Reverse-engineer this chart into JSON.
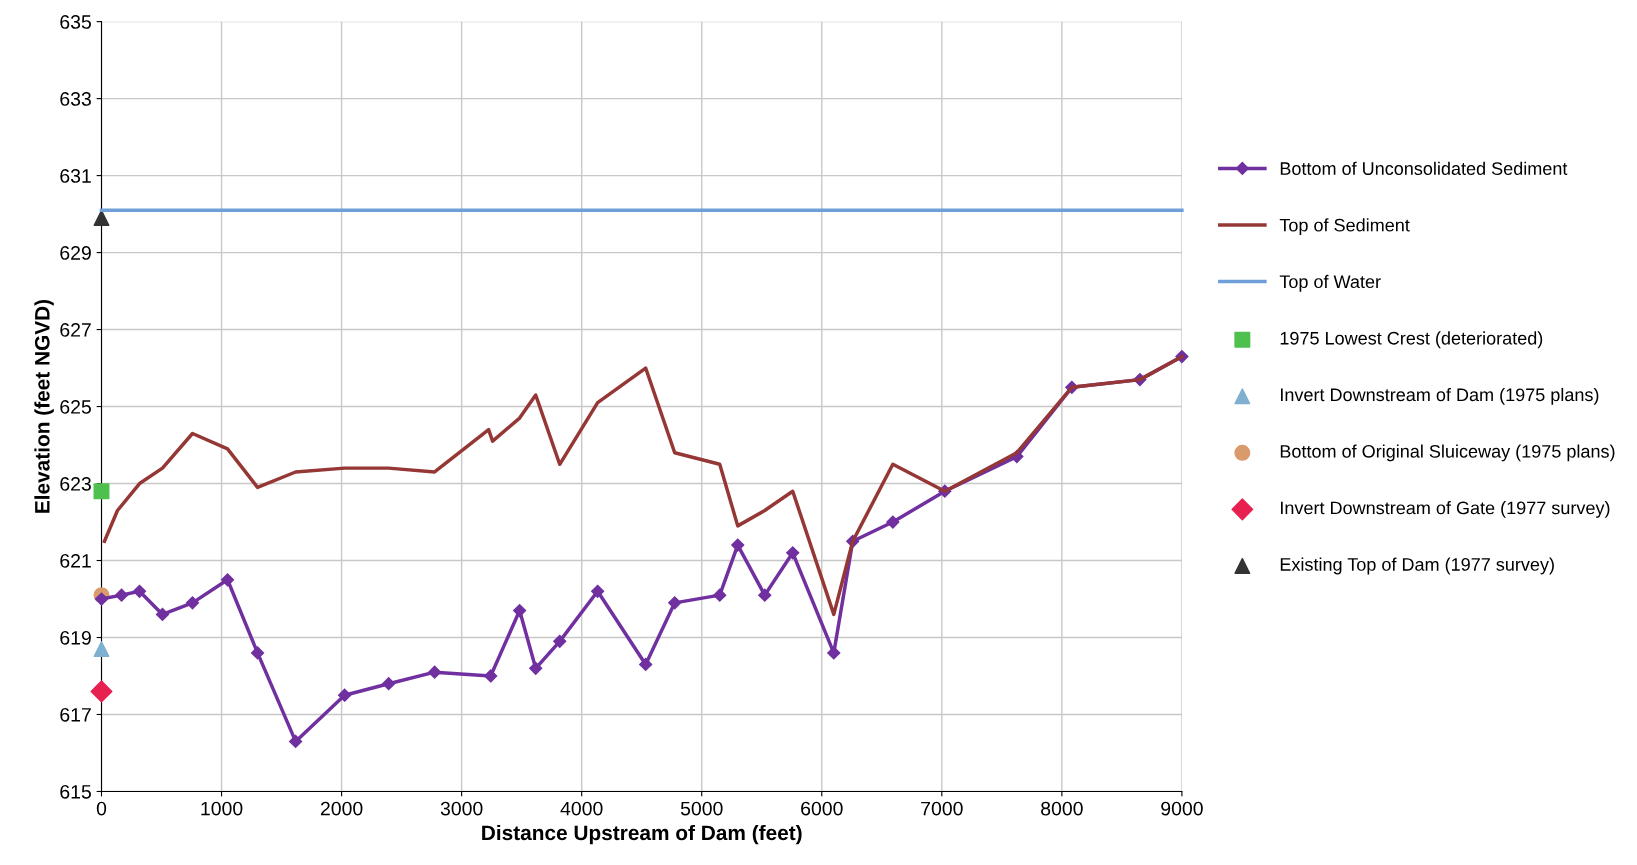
{
  "chart_data": {
    "type": "line",
    "xlabel": "Distance Upstream of Dam (feet)",
    "ylabel": "Elevation (feet NGVD)",
    "xlim": [
      0,
      9000
    ],
    "xticks": [
      0,
      1000,
      2000,
      3000,
      4000,
      5000,
      6000,
      7000,
      8000,
      9000
    ],
    "ylim": [
      615,
      635
    ],
    "yticks": [
      615,
      617,
      619,
      621,
      623,
      625,
      627,
      629,
      631,
      633,
      635
    ],
    "grid": true,
    "legend": "right",
    "series": [
      {
        "name": "Bottom of Unconsolidated Sediment",
        "color": "#7030a0",
        "marker": "diamond",
        "x": [
          0,
          167,
          317,
          508,
          758,
          1050,
          1300,
          1617,
          2025,
          2392,
          2775,
          3242,
          3483,
          3617,
          3817,
          4133,
          4533,
          4775,
          5150,
          5300,
          5525,
          5758,
          6100,
          6258,
          6592,
          7025,
          7625,
          8083,
          8650,
          9000
        ],
        "values": [
          620.0,
          620.1,
          620.2,
          619.6,
          619.9,
          620.5,
          618.6,
          616.3,
          617.5,
          617.8,
          618.1,
          618.0,
          619.7,
          618.2,
          618.9,
          620.2,
          618.3,
          619.9,
          620.1,
          621.4,
          620.1,
          621.2,
          618.6,
          621.5,
          622.0,
          622.8,
          623.7,
          625.5,
          625.7,
          626.3
        ]
      },
      {
        "name": "Top of Sediment",
        "color": "#953735",
        "marker": "none",
        "x": [
          25,
          133,
          317,
          508,
          758,
          1050,
          1300,
          1617,
          2025,
          2392,
          2775,
          3225,
          3258,
          3483,
          3617,
          3817,
          4133,
          4533,
          4775,
          5150,
          5300,
          5525,
          5758,
          6100,
          6258,
          6592,
          7025,
          7625,
          8083,
          8650,
          9000
        ],
        "values": [
          621.5,
          622.3,
          623.0,
          623.4,
          624.3,
          623.9,
          622.9,
          623.3,
          623.4,
          623.4,
          623.3,
          624.4,
          624.1,
          624.7,
          625.3,
          623.5,
          625.1,
          626.0,
          623.8,
          623.5,
          621.9,
          622.3,
          622.8,
          619.6,
          621.5,
          623.5,
          622.8,
          623.8,
          625.5,
          625.7,
          626.3
        ]
      },
      {
        "name": "Top of Water",
        "color": "#6f9fd8",
        "marker": "none",
        "x": [
          0,
          9000
        ],
        "values": [
          630.1,
          630.1
        ]
      },
      {
        "name": "1975 Lowest Crest (deteriorated)",
        "type": "scatter",
        "color": "#4ec04e",
        "marker": "square",
        "x": [
          0
        ],
        "values": [
          622.8
        ]
      },
      {
        "name": "Invert Downstream of Dam (1975 plans)",
        "type": "scatter",
        "color": "#7fb0d0",
        "marker": "triangle",
        "x": [
          0
        ],
        "values": [
          618.7
        ]
      },
      {
        "name": "Bottom of Original Sluiceway (1975 plans)",
        "type": "scatter",
        "color": "#d99a6c",
        "marker": "circle",
        "x": [
          0
        ],
        "values": [
          620.1
        ]
      },
      {
        "name": "Invert Downstream of Gate (1977 survey)",
        "type": "scatter",
        "color": "#e8204f",
        "marker": "diamond",
        "x": [
          0
        ],
        "values": [
          617.6
        ]
      },
      {
        "name": "Existing Top of Dam (1977 survey)",
        "type": "scatter",
        "color": "#333333",
        "marker": "triangle",
        "x": [
          0
        ],
        "values": [
          629.9
        ]
      }
    ]
  }
}
